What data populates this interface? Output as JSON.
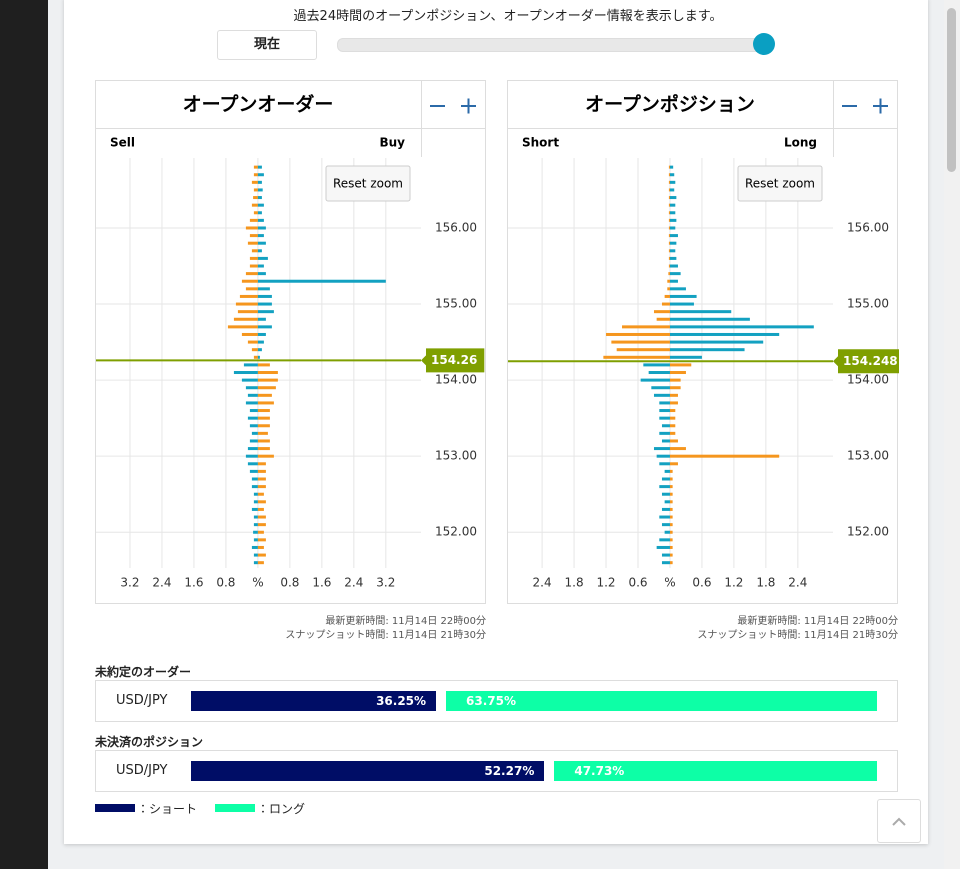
{
  "header": {
    "description": "過去24時間のオープンポジション、オープンオーダー情報を表示します。",
    "slider_button": "現在"
  },
  "chart_data": [
    {
      "type": "butterfly",
      "title": "オープンオーダー",
      "reset_label": "Reset zoom",
      "updated": "最新更新時間: 11月14日 22時00分",
      "snapshot": "スナップショット時間: 11月14日 21時30分",
      "current_price": 154.26,
      "grid": true,
      "y": [
        156.8,
        156.7,
        156.6,
        156.5,
        156.4,
        156.3,
        156.2,
        156.1,
        156.0,
        155.9,
        155.8,
        155.7,
        155.6,
        155.5,
        155.4,
        155.3,
        155.2,
        155.1,
        155.0,
        154.9,
        154.8,
        154.7,
        154.6,
        154.5,
        154.4,
        154.3,
        154.2,
        154.1,
        154.0,
        153.9,
        153.8,
        153.7,
        153.6,
        153.5,
        153.4,
        153.3,
        153.2,
        153.1,
        153.0,
        152.9,
        152.8,
        152.7,
        152.6,
        152.5,
        152.4,
        152.3,
        152.2,
        152.1,
        152.0,
        151.9,
        151.8,
        151.7,
        151.6
      ],
      "series": [
        {
          "name": "Sell",
          "color": "#f5961e",
          "color_below": "#13a1c1",
          "values": [
            -0.1,
            -0.1,
            -0.15,
            -0.1,
            -0.12,
            -0.15,
            -0.1,
            -0.2,
            -0.3,
            -0.2,
            -0.25,
            -0.15,
            -0.2,
            -0.2,
            -0.3,
            -0.4,
            -0.3,
            -0.45,
            -0.55,
            -0.5,
            -0.6,
            -0.75,
            -0.4,
            -0.25,
            -0.15,
            -0.1,
            -0.35,
            -0.6,
            -0.4,
            -0.3,
            -0.25,
            -0.3,
            -0.2,
            -0.25,
            -0.2,
            -0.15,
            -0.2,
            -0.25,
            -0.3,
            -0.25,
            -0.2,
            -0.15,
            -0.15,
            -0.1,
            -0.1,
            -0.15,
            -0.1,
            -0.1,
            -0.12,
            -0.1,
            -0.15,
            -0.1,
            -0.1
          ]
        },
        {
          "name": "Buy",
          "color": "#13a1c1",
          "color_below": "#f5961e",
          "values": [
            0.1,
            0.15,
            0.1,
            0.12,
            0.1,
            0.15,
            0.1,
            0.15,
            0.2,
            0.15,
            0.2,
            0.1,
            0.25,
            0.15,
            0.2,
            3.2,
            0.3,
            0.35,
            0.35,
            0.4,
            0.2,
            0.35,
            0.2,
            0.15,
            0.1,
            0.05,
            0.3,
            0.5,
            0.5,
            0.45,
            0.35,
            0.4,
            0.3,
            0.3,
            0.3,
            0.25,
            0.3,
            0.3,
            0.4,
            0.2,
            0.2,
            0.2,
            0.2,
            0.15,
            0.2,
            0.15,
            0.2,
            0.2,
            0.15,
            0.2,
            0.15,
            0.2,
            0.15
          ]
        }
      ],
      "xlim": [
        -4.05,
        4.08
      ],
      "xticks": [
        {
          "value": -3.2,
          "label": "3.2"
        },
        {
          "value": -2.4,
          "label": "2.4"
        },
        {
          "value": -1.6,
          "label": "1.6"
        },
        {
          "value": -0.8,
          "label": "0.8"
        },
        {
          "value": 0,
          "label": "%"
        },
        0.8,
        1.6,
        2.4,
        3.2
      ],
      "ylim": [
        151.53,
        156.92
      ],
      "yticks": [
        {
          "value": 152,
          "label": "152.00"
        },
        {
          "value": 153,
          "label": "153.00"
        },
        {
          "value": 154,
          "label": "154.00"
        },
        {
          "value": 155,
          "label": "155.00"
        },
        {
          "value": 156,
          "label": "156.00"
        }
      ]
    },
    {
      "type": "butterfly",
      "title": "オープンポジション",
      "reset_label": "Reset zoom",
      "updated": "最新更新時間: 11月14日 22時00分",
      "snapshot": "スナップショット時間: 11月14日 21時30分",
      "current_price": 154.248,
      "grid": true,
      "y": [
        156.8,
        156.7,
        156.6,
        156.5,
        156.4,
        156.3,
        156.2,
        156.1,
        156.0,
        155.9,
        155.8,
        155.7,
        155.6,
        155.5,
        155.4,
        155.3,
        155.2,
        155.1,
        155.0,
        154.9,
        154.8,
        154.7,
        154.6,
        154.5,
        154.4,
        154.3,
        154.2,
        154.1,
        154.0,
        153.9,
        153.8,
        153.7,
        153.6,
        153.5,
        153.4,
        153.3,
        153.2,
        153.1,
        153.0,
        152.9,
        152.8,
        152.7,
        152.6,
        152.5,
        152.4,
        152.3,
        152.2,
        152.1,
        152.0,
        151.9,
        151.8,
        151.7,
        151.6
      ],
      "series": [
        {
          "name": "Short",
          "color": "#f5961e",
          "color_below": "#13a1c1",
          "values": [
            -0.02,
            -0.02,
            -0.02,
            -0.02,
            -0.02,
            -0.02,
            -0.02,
            -0.02,
            -0.02,
            -0.02,
            -0.02,
            -0.02,
            -0.02,
            -0.02,
            -0.03,
            -0.05,
            -0.05,
            -0.1,
            -0.15,
            -0.3,
            -0.25,
            -0.9,
            -1.2,
            -1.1,
            -1.0,
            -1.25,
            -0.5,
            -0.4,
            -0.55,
            -0.35,
            -0.3,
            -0.2,
            -0.2,
            -0.2,
            -0.15,
            -0.2,
            -0.15,
            -0.3,
            -0.25,
            -0.2,
            -0.1,
            -0.15,
            -0.2,
            -0.15,
            -0.1,
            -0.15,
            -0.2,
            -0.15,
            -0.1,
            -0.2,
            -0.25,
            -0.15,
            -0.15
          ]
        },
        {
          "name": "Long",
          "color": "#13a1c1",
          "color_below": "#f5961e",
          "values": [
            0.06,
            0.08,
            0.1,
            0.08,
            0.12,
            0.1,
            0.1,
            0.12,
            0.1,
            0.15,
            0.12,
            0.1,
            0.12,
            0.15,
            0.2,
            0.15,
            0.3,
            0.5,
            0.45,
            1.15,
            1.5,
            2.7,
            2.05,
            1.75,
            1.4,
            0.6,
            0.4,
            0.3,
            0.2,
            0.2,
            0.15,
            0.15,
            0.1,
            0.1,
            0.1,
            0.1,
            0.15,
            0.3,
            2.05,
            0.15,
            0.05,
            0.05,
            0.05,
            0.05,
            0.05,
            0.05,
            0.05,
            0.05,
            0.05,
            0.05,
            0.05,
            0.05,
            0.05
          ]
        }
      ],
      "xlim": [
        -3.04,
        3.06
      ],
      "xticks": [
        {
          "value": -2.4,
          "label": "2.4"
        },
        {
          "value": -1.8,
          "label": "1.8"
        },
        {
          "value": -1.2,
          "label": "1.2"
        },
        {
          "value": -0.6,
          "label": "0.6"
        },
        {
          "value": 0,
          "label": "%"
        },
        0.6,
        1.2,
        1.8,
        2.4
      ],
      "ylim": [
        151.53,
        156.92
      ],
      "yticks": [
        {
          "value": 152,
          "label": "152.00"
        },
        {
          "value": 153,
          "label": "153.00"
        },
        {
          "value": 154,
          "label": "154.00"
        },
        {
          "value": 155,
          "label": "155.00"
        },
        {
          "value": 156,
          "label": "156.00"
        }
      ]
    },
    {
      "type": "share",
      "title": "未約定のオーダー",
      "categories": [
        "USD/JPY"
      ],
      "series": [
        {
          "name": "：ショート",
          "color": "#000d66",
          "values": [
            36.25
          ],
          "value_labels": [
            "36.25%"
          ]
        },
        {
          "name": "：ロング",
          "color": "#0dffa6",
          "values": [
            63.75
          ],
          "value_labels": [
            "63.75%"
          ]
        }
      ]
    },
    {
      "type": "share",
      "title": "未決済のポジション",
      "categories": [
        "USD/JPY"
      ],
      "series": [
        {
          "color": "#000d66",
          "values": [
            52.27
          ],
          "value_labels": [
            "52.27%"
          ]
        },
        {
          "color": "#0dffa6",
          "values": [
            47.73
          ],
          "value_labels": [
            "47.73%"
          ]
        }
      ]
    }
  ]
}
